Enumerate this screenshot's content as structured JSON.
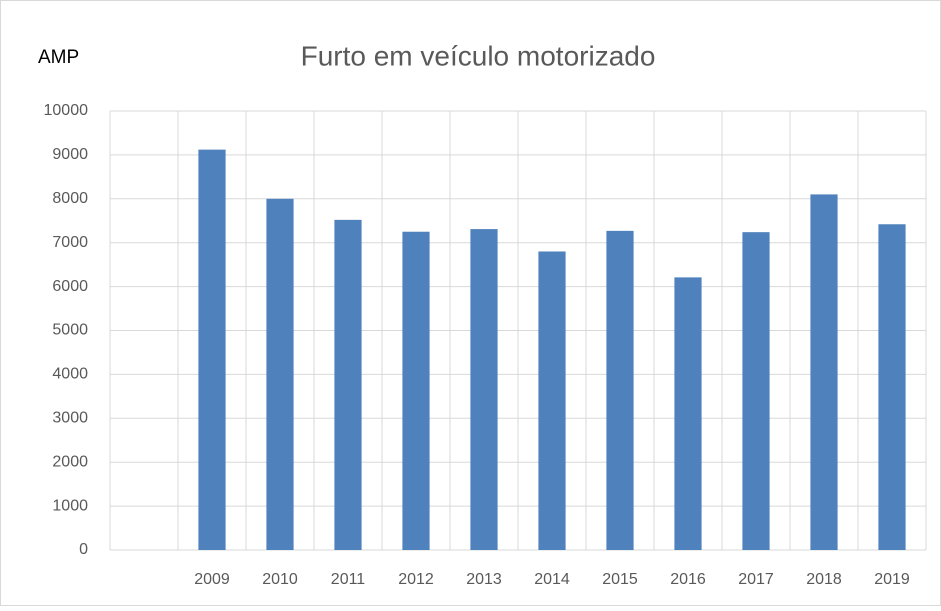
{
  "chart_data": {
    "type": "bar",
    "title": "Furto em veículo motorizado",
    "annotation": "AMP",
    "categories": [
      null,
      "2009",
      "2010",
      "2011",
      "2012",
      "2013",
      "2014",
      "2015",
      "2016",
      "2017",
      "2018",
      "2019"
    ],
    "values": [
      null,
      9120,
      8000,
      7520,
      7250,
      7310,
      6800,
      7270,
      6210,
      7240,
      8100,
      7420
    ],
    "color": "#4f81bd",
    "ylim": [
      0,
      10000
    ],
    "yticks": [
      0,
      1000,
      2000,
      3000,
      4000,
      5000,
      6000,
      7000,
      8000,
      9000,
      10000
    ],
    "grid": true
  }
}
